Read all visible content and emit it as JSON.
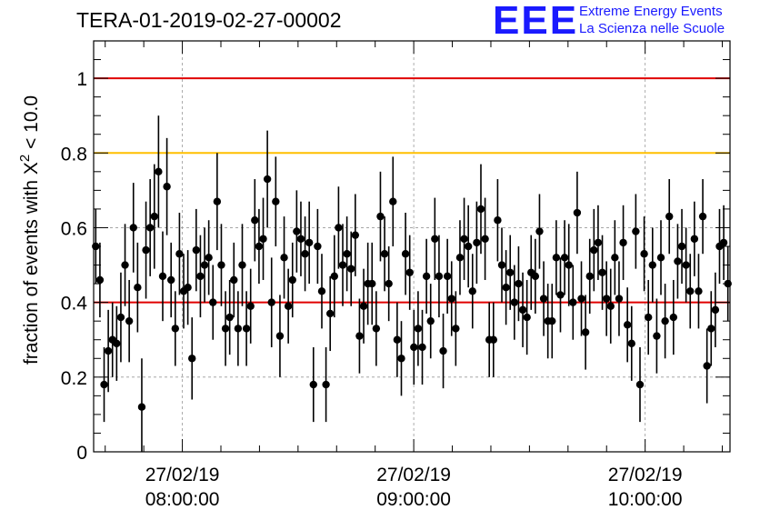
{
  "header": {
    "title": "TERA-01-2019-02-27-00002",
    "logo_text": "EEE",
    "logo_line1": "Extreme Energy Events",
    "logo_line2": "La Scienza nelle Scuole"
  },
  "colors": {
    "logo": "#1a1aff",
    "red_line": "#e00000",
    "orange_line": "#ffbf00",
    "marker": "#000000"
  },
  "chart_data": {
    "type": "scatter",
    "title": "TERA-01-2019-02-27-00002",
    "ylabel": "fraction of events with X² < 10.0",
    "ylabel_main": "fraction of events with X",
    "ylabel_sup": "2",
    "ylabel_tail": " < 10.0",
    "xlabel": "",
    "xlim": [
      "2019-02-27 07:37",
      "2019-02-27 10:22"
    ],
    "ylim": [
      0,
      1.1
    ],
    "yticks": [
      0,
      0.2,
      0.4,
      0.6,
      0.8,
      1
    ],
    "ytick_labels": [
      "0",
      "0.2",
      "0.4",
      "0.6",
      "0.8",
      "1"
    ],
    "xticks": [
      "2019-02-27 08:00",
      "2019-02-27 09:00",
      "2019-02-27 10:00"
    ],
    "xtick_labels": [
      {
        "date": "27/02/19",
        "time": "08:00:00"
      },
      {
        "date": "27/02/19",
        "time": "09:00:00"
      },
      {
        "date": "27/02/19",
        "time": "10:00:00"
      }
    ],
    "grid": true,
    "reference_lines": [
      {
        "y": 1.0,
        "color": "#e00000"
      },
      {
        "y": 0.8,
        "color": "#ffbf00"
      },
      {
        "y": 0.4,
        "color": "#e00000"
      }
    ],
    "series": [
      {
        "x_start": "2019-02-27 07:37",
        "x_end": "2019-02-27 10:22",
        "y": [
          0.55,
          0.46,
          0.18,
          0.27,
          0.3,
          0.29,
          0.36,
          0.5,
          0.35,
          0.6,
          0.44,
          0.12,
          0.54,
          0.6,
          0.63,
          0.75,
          0.47,
          0.71,
          0.46,
          0.33,
          0.53,
          0.43,
          0.44,
          0.25,
          0.54,
          0.47,
          0.5,
          0.52,
          0.4,
          0.67,
          0.5,
          0.33,
          0.36,
          0.46,
          0.33,
          0.5,
          0.33,
          0.39,
          0.62,
          0.55,
          0.57,
          0.73,
          0.4,
          0.67,
          0.31,
          0.52,
          0.39,
          0.46,
          0.59,
          0.57,
          0.53,
          0.56,
          0.18,
          0.55,
          0.43,
          0.18,
          0.37,
          0.47,
          0.6,
          0.5,
          0.53,
          0.49,
          0.58,
          0.31,
          0.39,
          0.45,
          0.45,
          0.33,
          0.63,
          0.53,
          0.45,
          0.67,
          0.3,
          0.25,
          0.53,
          0.48,
          0.28,
          0.33,
          0.28,
          0.47,
          0.35,
          0.57,
          0.47,
          0.27,
          0.47,
          0.41,
          0.33,
          0.52,
          0.57,
          0.55,
          0.43,
          0.56,
          0.65,
          0.57,
          0.3,
          0.3,
          0.62,
          0.5,
          0.44,
          0.48,
          0.4,
          0.45,
          0.38,
          0.36,
          0.48,
          0.47,
          0.59,
          0.41,
          0.35,
          0.35,
          0.52,
          0.42,
          0.52,
          0.5,
          0.4,
          0.64,
          0.41,
          0.32,
          0.47,
          0.54,
          0.56,
          0.48,
          0.41,
          0.39,
          0.52,
          0.41,
          0.56,
          0.34,
          0.29,
          0.59,
          0.18,
          0.53,
          0.36,
          0.5,
          0.31,
          0.52,
          0.35,
          0.63,
          0.36,
          0.51,
          0.55,
          0.5,
          0.43,
          0.57,
          0.43,
          0.63,
          0.23,
          0.33,
          0.38,
          0.55,
          0.56,
          0.45
        ],
        "err": [
          0.1,
          0.1,
          0.1,
          0.11,
          0.1,
          0.1,
          0.12,
          0.11,
          0.11,
          0.12,
          0.12,
          0.13,
          0.13,
          0.13,
          0.14,
          0.15,
          0.12,
          0.13,
          0.1,
          0.1,
          0.11,
          0.1,
          0.1,
          0.11,
          0.11,
          0.11,
          0.1,
          0.1,
          0.1,
          0.13,
          0.11,
          0.1,
          0.1,
          0.1,
          0.1,
          0.11,
          0.1,
          0.1,
          0.11,
          0.1,
          0.11,
          0.13,
          0.12,
          0.12,
          0.11,
          0.11,
          0.1,
          0.1,
          0.11,
          0.1,
          0.1,
          0.11,
          0.1,
          0.1,
          0.1,
          0.1,
          0.1,
          0.11,
          0.11,
          0.11,
          0.1,
          0.1,
          0.11,
          0.1,
          0.1,
          0.11,
          0.11,
          0.1,
          0.12,
          0.1,
          0.1,
          0.12,
          0.1,
          0.1,
          0.11,
          0.1,
          0.1,
          0.1,
          0.1,
          0.1,
          0.1,
          0.11,
          0.11,
          0.1,
          0.1,
          0.1,
          0.1,
          0.1,
          0.11,
          0.11,
          0.1,
          0.11,
          0.12,
          0.11,
          0.1,
          0.1,
          0.11,
          0.1,
          0.1,
          0.1,
          0.1,
          0.1,
          0.1,
          0.1,
          0.1,
          0.1,
          0.1,
          0.1,
          0.1,
          0.1,
          0.1,
          0.1,
          0.1,
          0.11,
          0.1,
          0.11,
          0.1,
          0.1,
          0.1,
          0.11,
          0.1,
          0.1,
          0.1,
          0.1,
          0.1,
          0.1,
          0.1,
          0.1,
          0.1,
          0.1,
          0.1,
          0.1,
          0.1,
          0.1,
          0.1,
          0.1,
          0.1,
          0.1,
          0.1,
          0.1,
          0.1,
          0.1,
          0.1,
          0.1,
          0.1,
          0.1,
          0.1,
          0.1,
          0.1,
          0.1,
          0.1,
          0.1
        ]
      }
    ]
  }
}
